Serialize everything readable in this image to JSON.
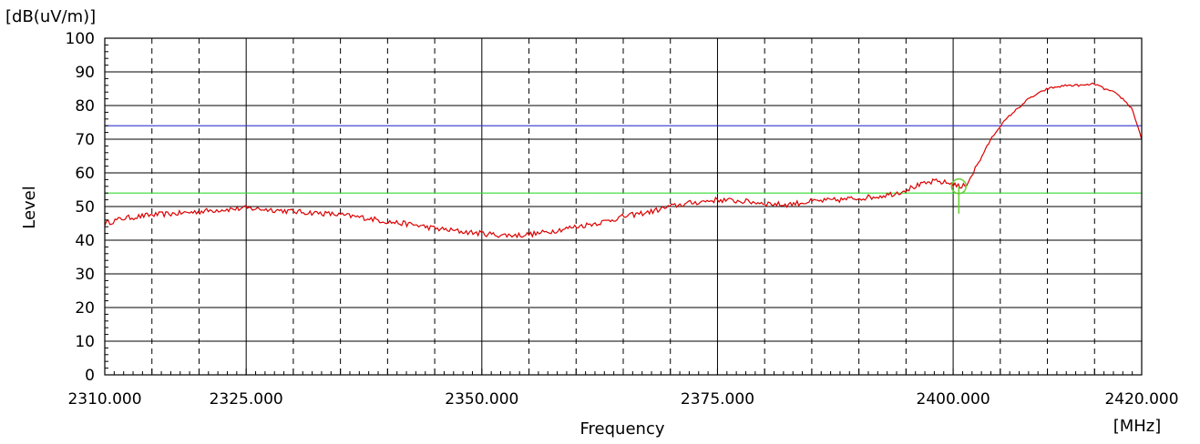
{
  "chart_data": {
    "type": "line",
    "y_unit_label": "[dB(uV/m)]",
    "ylabel": "Level",
    "xlabel": "Frequency",
    "x_unit_label": "[MHz]",
    "xlim": [
      2310,
      2420
    ],
    "ylim": [
      0,
      100
    ],
    "x_tick_labels": [
      "2310.000",
      "2325.000",
      "2350.000",
      "2375.000",
      "2400.000",
      "2420.000"
    ],
    "y_tick_labels": [
      "0",
      "10",
      "20",
      "30",
      "40",
      "50",
      "60",
      "70",
      "80",
      "90",
      "100"
    ],
    "grid": true,
    "reference_lines": [
      {
        "value": 74,
        "color": "#3333cc"
      },
      {
        "value": 54,
        "color": "#33dd33"
      }
    ],
    "marker": {
      "x": 2400.6,
      "y": 56
    },
    "series": [
      {
        "color": "#dd0000",
        "x": [
          2310,
          2312,
          2315,
          2318,
          2320,
          2322,
          2325,
          2328,
          2330,
          2333,
          2335,
          2338,
          2340,
          2343,
          2345,
          2348,
          2350,
          2352,
          2354,
          2356,
          2358,
          2360,
          2363,
          2365,
          2368,
          2370,
          2372,
          2375,
          2378,
          2380,
          2382,
          2385,
          2388,
          2390,
          2392,
          2394,
          2396,
          2398,
          2399.5,
          2400.3,
          2400.8,
          2401.5,
          2402.5,
          2404,
          2405,
          2406,
          2407,
          2408,
          2410,
          2412,
          2413,
          2414,
          2415,
          2416,
          2417,
          2418,
          2419,
          2420
        ],
        "y": [
          45,
          46.5,
          47.5,
          48,
          48.5,
          49,
          49.5,
          49,
          48.5,
          48,
          47.5,
          46.5,
          45.5,
          44.5,
          43.5,
          42.5,
          42,
          41.5,
          41.5,
          42,
          43,
          44,
          45.5,
          47,
          48.5,
          50,
          51,
          52,
          51.5,
          51,
          50.5,
          51.5,
          52,
          52.5,
          53,
          54,
          56,
          57.5,
          57,
          56.5,
          55.5,
          57,
          62,
          70,
          74,
          77,
          79.5,
          82,
          85,
          86,
          86,
          86,
          86.5,
          85,
          84,
          82,
          79,
          70
        ]
      }
    ]
  }
}
